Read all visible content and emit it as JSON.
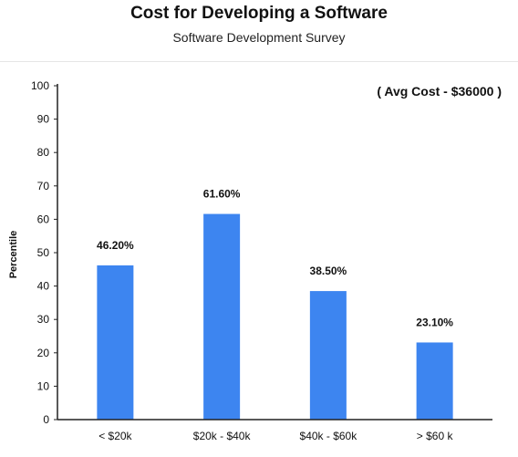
{
  "chart_data": {
    "type": "bar",
    "title": "Cost for Developing a Software",
    "subtitle": "Software Development Survey",
    "xlabel": "",
    "ylabel": "Percentile",
    "ylim": [
      0,
      100
    ],
    "yticks": [
      0,
      10,
      20,
      30,
      40,
      50,
      60,
      70,
      80,
      90,
      100
    ],
    "categories": [
      "< $20k",
      "$20k - $40k",
      "$40k - $60k",
      "> $60 k"
    ],
    "values": [
      46.2,
      61.6,
      38.5,
      23.1
    ],
    "data_labels": [
      "46.20%",
      "61.60%",
      "38.50%",
      "23.10%"
    ],
    "annotation": "( Avg Cost - $36000 )",
    "bar_color": "#3d85f0",
    "grid": false,
    "legend": "none"
  }
}
